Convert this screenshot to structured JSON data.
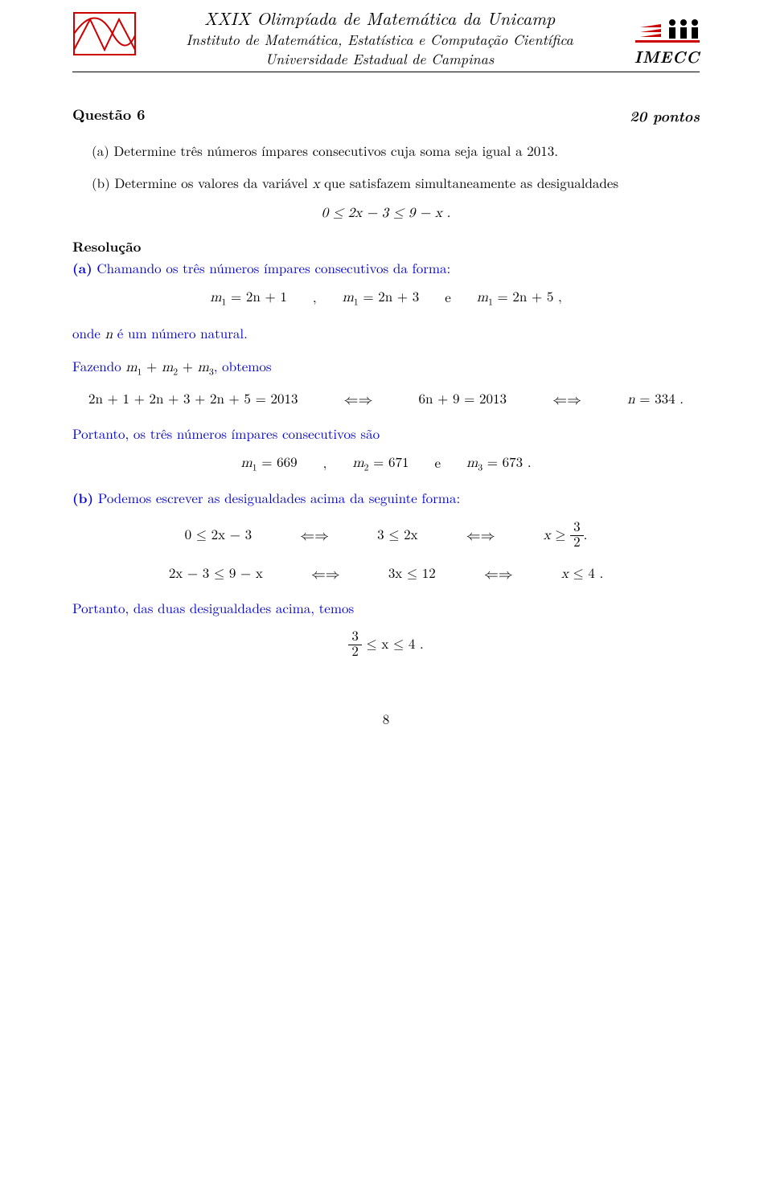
{
  "header": {
    "title_main": "XXIX Olimpíada de Matemática da Unicamp",
    "title_sub1": "Instituto de Matemática, Estatística e Computação Científica",
    "title_sub2": "Universidade Estadual de Campinas",
    "logo_right_text": "IMECC",
    "logo_left_stroke": "#cc0000",
    "logo_right_colors": {
      "bars": "#cc0000",
      "dots": "#000000",
      "rule": "#cc0000"
    }
  },
  "question": {
    "label": "Questão 6",
    "points": "20 pontos",
    "part_a": "Determine três números ímpares consecutivos cuja soma seja igual a  2013.",
    "part_b_lead": "Determine os valores da variável ",
    "part_b_var": "x",
    "part_b_tail": "  que satisfazem simultaneamente as desigualdades",
    "part_b_ineq": "0  ≤  2x  −  3  ≤  9  −  x .",
    "part_a_tag": "(a)",
    "part_b_tag": "(b)"
  },
  "solution": {
    "heading": "Resolução",
    "a_tag": "(a)",
    "a_intro": "Chamando os três números ímpares consecutivos da forma:",
    "a_defs": {
      "m1": "m",
      "sub1": "1",
      "eq1": "  =  2n  +  1",
      "comma": ",",
      "eq2": "  =  2n  +  3",
      "e": "e",
      "eq3": "  =  2n  +  5 ,"
    },
    "a_where_lead": "onde  ",
    "a_where_var": "n",
    "a_where_tail": "  é um número natural.",
    "a_doing_lead": "Fazendo  ",
    "a_doing_expr_parts": [
      "m",
      "1",
      "  +  ",
      "m",
      "2",
      "  +  ",
      "m",
      "3"
    ],
    "a_doing_tail": ", obtemos",
    "a_big": {
      "left": "2n  +  1  +  2n  +  3  +  2n  +  5  =  2013",
      "mid": "6n  +  9  =  2013",
      "right": "n  =  334 ."
    },
    "a_therefore": "Portanto, os três números ímpares consecutivos são",
    "a_answers": {
      "m1": "m",
      "s1": "1",
      "v1": "  =  669",
      "comma": ",",
      "s2": "2",
      "v2": "  =  671",
      "e": "e",
      "s3": "3",
      "v3": "  =  673 ."
    },
    "b_tag": "(b)",
    "b_intro": "Podemos escrever as desigualdades acima da seguinte forma:",
    "b_line1": {
      "a": "0  ≤  2x  −  3",
      "b": "3  ≤  2x",
      "c_lead": "x  ≥  ",
      "frac_num": "3",
      "frac_den": "2",
      "dot": "."
    },
    "b_line2": {
      "a": "2x  −  3  ≤  9  −  x",
      "b": "3x  ≤  12",
      "c": "x  ≤  4 ."
    },
    "b_therefore": "Portanto, das duas desigualdades acima, temos",
    "b_final_num": "3",
    "b_final_den": "2",
    "b_final_tail": "  ≤  x  ≤  4 ."
  },
  "pagenum": "8",
  "iff": "⇐⇒"
}
